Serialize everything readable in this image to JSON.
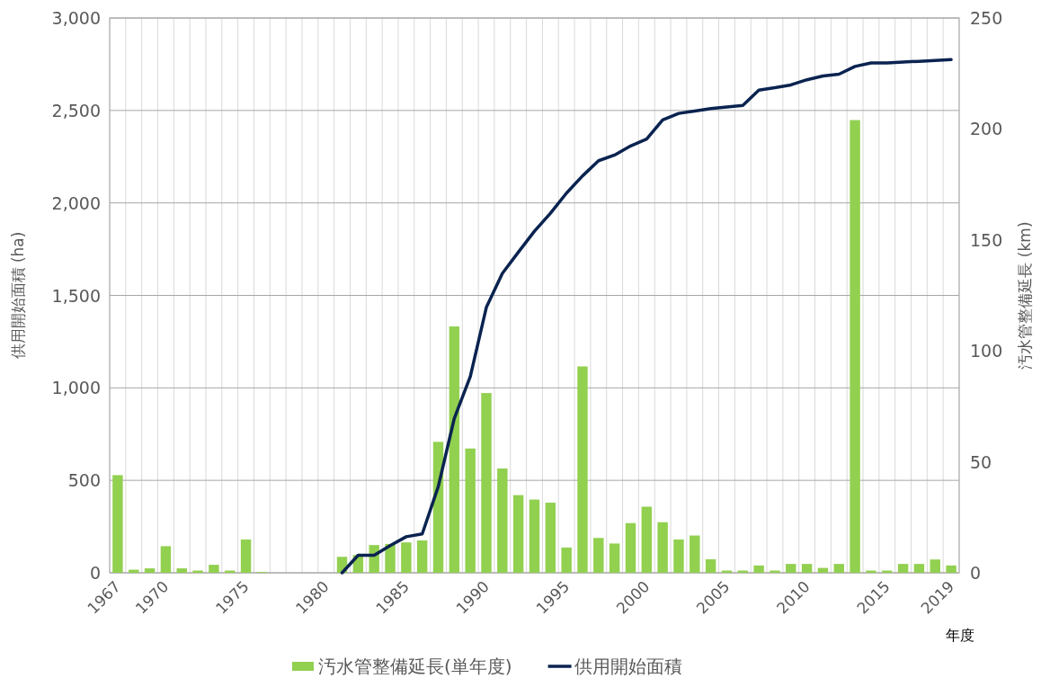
{
  "chart_data": {
    "type": "bar",
    "xlabel": "年度",
    "ylabel": "供用開始面積 (ha)",
    "y2label": "汚水管整備延長 (km)",
    "categories": [
      "1967",
      null,
      null,
      "1970",
      null,
      null,
      null,
      null,
      "1975",
      null,
      null,
      null,
      null,
      "1980",
      null,
      null,
      null,
      null,
      "1985",
      null,
      null,
      null,
      null,
      "1990",
      null,
      null,
      null,
      null,
      "1995",
      null,
      null,
      null,
      null,
      "2000",
      null,
      null,
      null,
      null,
      "2005",
      null,
      null,
      null,
      null,
      "2010",
      null,
      null,
      null,
      null,
      "2015",
      null,
      null,
      null,
      "2019"
    ],
    "series": [
      {
        "name": "汚水管整備延長(単年度)",
        "axis": "y2",
        "color": "#92d050",
        "values": [
          44,
          1.4,
          2,
          12,
          2,
          1,
          3.6,
          1,
          15,
          0.4,
          0,
          0,
          0,
          0,
          7.2,
          8,
          12.5,
          13,
          13.7,
          14.6,
          59,
          111,
          56,
          81,
          47,
          35,
          33,
          31.6,
          11.4,
          93,
          15.7,
          13.2,
          22.4,
          29.8,
          22.8,
          15,
          16.8,
          6.1,
          1,
          1,
          3.3,
          1,
          4,
          4,
          2.2,
          4,
          204,
          1,
          1,
          4,
          4,
          6,
          3.3
        ]
      },
      {
        "name": "供用開始面積",
        "type": "line",
        "axis": "y",
        "color": "#0a2350",
        "values": [
          null,
          null,
          null,
          null,
          null,
          null,
          null,
          null,
          null,
          null,
          null,
          null,
          null,
          null,
          0,
          95,
          95,
          147,
          195,
          210,
          466,
          835,
          1062,
          1435,
          1619,
          1734,
          1847,
          1944,
          2053,
          2146,
          2228,
          2259,
          2308,
          2345,
          2449,
          2484,
          2497,
          2510,
          2519,
          2527,
          2610,
          2623,
          2638,
          2666,
          2686,
          2696,
          2738,
          2757,
          2757,
          2762,
          2766,
          2770,
          2775
        ]
      }
    ],
    "ylim": [
      0,
      3000
    ],
    "yticks": [
      0,
      {
        "value": 500,
        "label": "500"
      },
      {
        "value": 1000,
        "label": "1,000"
      },
      {
        "value": 1500,
        "label": "1,500"
      },
      {
        "value": 2000,
        "label": "2,000"
      },
      {
        "value": 2500,
        "label": "2,500"
      },
      {
        "value": 3000,
        "label": "3,000"
      }
    ],
    "y2lim": [
      0,
      250
    ],
    "y2ticks": [
      0,
      50,
      100,
      150,
      200,
      250
    ],
    "grid": true,
    "legend": "bottom"
  }
}
